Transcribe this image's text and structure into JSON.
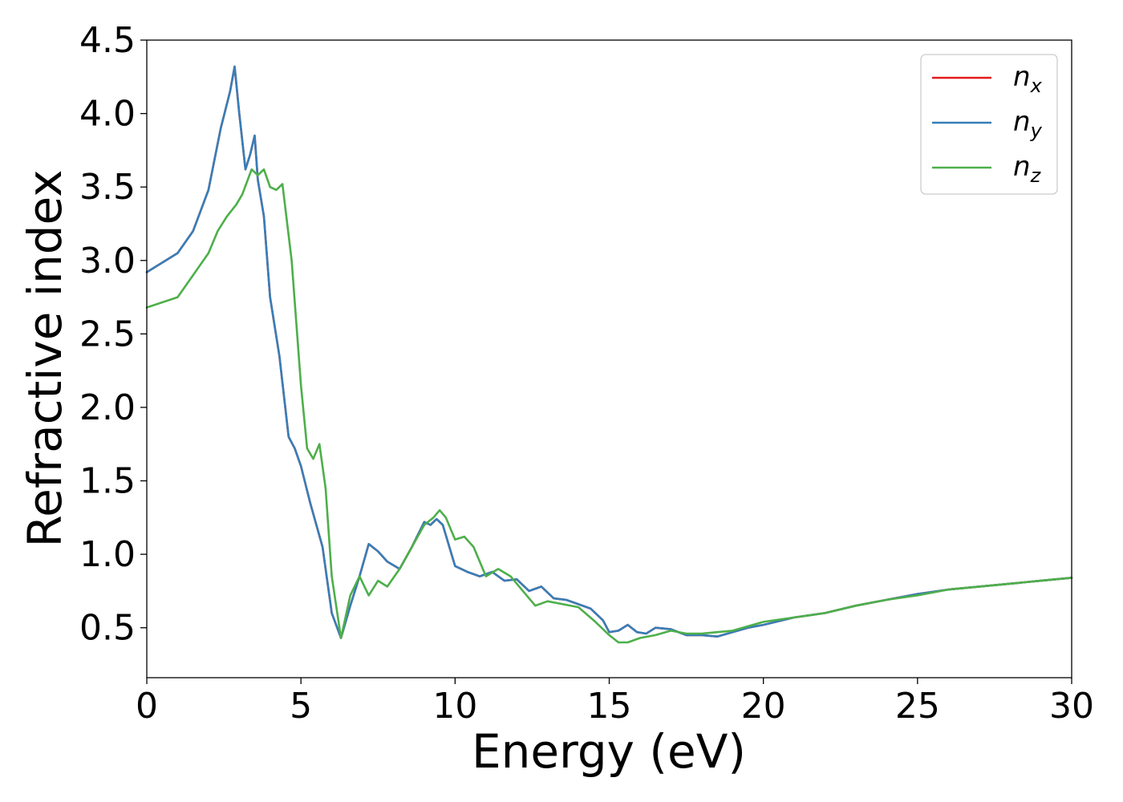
{
  "chart_data": {
    "type": "line",
    "xlabel": "Energy (eV)",
    "ylabel": "Refractive index",
    "xlim": [
      0,
      30
    ],
    "ylim": [
      0.16,
      4.5
    ],
    "xticks": [
      0,
      5,
      10,
      15,
      20,
      25,
      30
    ],
    "xtick_labels": [
      "0",
      "5",
      "10",
      "15",
      "20",
      "25",
      "30"
    ],
    "yticks": [
      0.5,
      1.0,
      1.5,
      2.0,
      2.5,
      3.0,
      3.5,
      4.0,
      4.5
    ],
    "ytick_labels": [
      "0.5",
      "1.0",
      "1.5",
      "2.0",
      "2.5",
      "3.0",
      "3.5",
      "4.0",
      "4.5"
    ],
    "grid": false,
    "legend": {
      "placement": "top-right"
    },
    "series": [
      {
        "name": "n",
        "sub": "x",
        "color": "#e41a1c",
        "x": [
          0,
          1,
          1.5,
          2,
          2.4,
          2.7,
          2.85,
          3.0,
          3.2,
          3.35,
          3.5,
          3.6,
          3.8,
          4.0,
          4.3,
          4.6,
          4.8,
          5.0,
          5.3,
          5.7,
          6.0,
          6.3,
          6.6,
          6.9,
          7.2,
          7.5,
          7.8,
          8.2,
          8.6,
          9.0,
          9.2,
          9.4,
          9.6,
          10.0,
          10.4,
          10.8,
          11.2,
          11.6,
          12.0,
          12.4,
          12.8,
          13.2,
          13.6,
          14.0,
          14.4,
          14.8,
          15.0,
          15.3,
          15.6,
          15.9,
          16.2,
          16.5,
          17.0,
          17.5,
          18.0,
          18.5,
          19.0,
          19.5,
          20,
          21,
          22,
          23,
          24,
          25,
          26,
          27,
          28,
          29,
          30
        ],
        "values": [
          2.92,
          3.05,
          3.2,
          3.48,
          3.9,
          4.15,
          4.32,
          4.0,
          3.62,
          3.72,
          3.85,
          3.55,
          3.3,
          2.75,
          2.35,
          1.8,
          1.72,
          1.6,
          1.35,
          1.05,
          0.6,
          0.43,
          0.65,
          0.85,
          1.07,
          1.02,
          0.95,
          0.9,
          1.05,
          1.22,
          1.2,
          1.24,
          1.2,
          0.92,
          0.88,
          0.85,
          0.88,
          0.82,
          0.83,
          0.75,
          0.78,
          0.7,
          0.69,
          0.66,
          0.63,
          0.55,
          0.47,
          0.48,
          0.52,
          0.47,
          0.46,
          0.5,
          0.49,
          0.45,
          0.45,
          0.44,
          0.47,
          0.5,
          0.52,
          0.57,
          0.6,
          0.65,
          0.69,
          0.73,
          0.76,
          0.78,
          0.8,
          0.82,
          0.84
        ]
      },
      {
        "name": "n",
        "sub": "y",
        "color": "#377eb8",
        "x": [
          0,
          1,
          1.5,
          2,
          2.4,
          2.7,
          2.85,
          3.0,
          3.2,
          3.35,
          3.5,
          3.6,
          3.8,
          4.0,
          4.3,
          4.6,
          4.8,
          5.0,
          5.3,
          5.7,
          6.0,
          6.3,
          6.6,
          6.9,
          7.2,
          7.5,
          7.8,
          8.2,
          8.6,
          9.0,
          9.2,
          9.4,
          9.6,
          10.0,
          10.4,
          10.8,
          11.2,
          11.6,
          12.0,
          12.4,
          12.8,
          13.2,
          13.6,
          14.0,
          14.4,
          14.8,
          15.0,
          15.3,
          15.6,
          15.9,
          16.2,
          16.5,
          17.0,
          17.5,
          18.0,
          18.5,
          19.0,
          19.5,
          20,
          21,
          22,
          23,
          24,
          25,
          26,
          27,
          28,
          29,
          30
        ],
        "values": [
          2.92,
          3.05,
          3.2,
          3.48,
          3.9,
          4.15,
          4.32,
          4.0,
          3.62,
          3.72,
          3.85,
          3.55,
          3.3,
          2.75,
          2.35,
          1.8,
          1.72,
          1.6,
          1.35,
          1.05,
          0.6,
          0.43,
          0.65,
          0.85,
          1.07,
          1.02,
          0.95,
          0.9,
          1.05,
          1.22,
          1.2,
          1.24,
          1.2,
          0.92,
          0.88,
          0.85,
          0.88,
          0.82,
          0.83,
          0.75,
          0.78,
          0.7,
          0.69,
          0.66,
          0.63,
          0.55,
          0.47,
          0.48,
          0.52,
          0.47,
          0.46,
          0.5,
          0.49,
          0.45,
          0.45,
          0.44,
          0.47,
          0.5,
          0.52,
          0.57,
          0.6,
          0.65,
          0.69,
          0.73,
          0.76,
          0.78,
          0.8,
          0.82,
          0.84
        ]
      },
      {
        "name": "n",
        "sub": "z",
        "color": "#4daf4a",
        "x": [
          0,
          1,
          1.5,
          2,
          2.3,
          2.6,
          2.9,
          3.1,
          3.4,
          3.6,
          3.8,
          4.0,
          4.2,
          4.4,
          4.7,
          5.0,
          5.2,
          5.4,
          5.6,
          5.8,
          6.0,
          6.3,
          6.6,
          6.9,
          7.2,
          7.5,
          7.8,
          8.2,
          8.6,
          9.0,
          9.3,
          9.5,
          9.7,
          10.0,
          10.3,
          10.6,
          11.0,
          11.4,
          11.8,
          12.2,
          12.6,
          13.0,
          13.5,
          14.0,
          14.5,
          15.0,
          15.3,
          15.6,
          16.0,
          16.5,
          17.0,
          17.5,
          18.0,
          18.5,
          19.0,
          19.5,
          20,
          21,
          22,
          23,
          24,
          25,
          26,
          27,
          28,
          29,
          30
        ],
        "values": [
          2.68,
          2.75,
          2.9,
          3.05,
          3.2,
          3.3,
          3.38,
          3.45,
          3.62,
          3.58,
          3.62,
          3.5,
          3.48,
          3.52,
          3.0,
          2.15,
          1.72,
          1.65,
          1.75,
          1.45,
          0.85,
          0.43,
          0.72,
          0.85,
          0.72,
          0.82,
          0.78,
          0.9,
          1.05,
          1.2,
          1.25,
          1.3,
          1.25,
          1.1,
          1.12,
          1.05,
          0.85,
          0.9,
          0.85,
          0.75,
          0.65,
          0.68,
          0.66,
          0.64,
          0.55,
          0.45,
          0.4,
          0.4,
          0.43,
          0.45,
          0.48,
          0.46,
          0.46,
          0.47,
          0.48,
          0.51,
          0.54,
          0.57,
          0.6,
          0.65,
          0.69,
          0.72,
          0.76,
          0.78,
          0.8,
          0.82,
          0.84
        ]
      }
    ]
  }
}
